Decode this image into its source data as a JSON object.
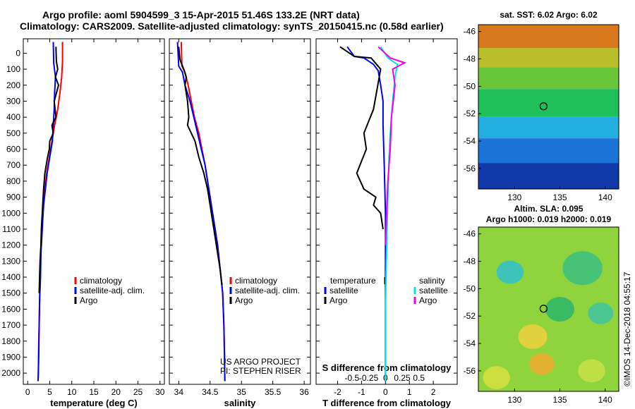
{
  "header": {
    "line1": "Argo profile: aoml 5904599_3 15-Apr-2015 51.46S 133.2E (NRT data)",
    "line2": "Climatology: CARS2009. Satellite-adjusted climatology: synTS_20150415.nc (0.58d earlier)"
  },
  "colors": {
    "climatology": "#ff0000",
    "satellite_adj": "#0000ff",
    "argo": "#000000",
    "salinity_sat": "#00e5e5",
    "salinity_argo": "#ee00ee"
  },
  "chart_data": [
    {
      "id": "temperature",
      "type": "line",
      "xlabel": "temperature (deg C)",
      "ylabel": "",
      "xlim": [
        -1,
        31
      ],
      "ylim": [
        2070,
        0
      ],
      "xticks": [
        0,
        5,
        10,
        15,
        20,
        25,
        30
      ],
      "yticks": [
        0,
        100,
        200,
        300,
        400,
        500,
        600,
        700,
        800,
        900,
        1000,
        1100,
        1200,
        1300,
        1400,
        1500,
        1600,
        1700,
        1800,
        1900,
        2000
      ],
      "legend": {
        "placement": "bottom-center",
        "entries": [
          "climatology",
          "satellite-adj. clim.",
          "Argo"
        ]
      },
      "series": [
        {
          "name": "climatology",
          "color": "#ff0000",
          "x": [
            7.9,
            7.9,
            7.7,
            7.3,
            6.8,
            6.1,
            5.5,
            4.9,
            4.3,
            3.9,
            3.5,
            3.3,
            3.1,
            2.95,
            2.8,
            2.7,
            2.6,
            2.5,
            2.45,
            2.4,
            2.35
          ],
          "y": [
            -70,
            50,
            150,
            250,
            350,
            450,
            550,
            650,
            750,
            850,
            950,
            1050,
            1150,
            1250,
            1400,
            1550,
            1700,
            1800,
            1900,
            2000,
            2050
          ]
        },
        {
          "name": "satellite-adj. clim.",
          "color": "#0000ff",
          "x": [
            5.8,
            5.9,
            6.3,
            6.1,
            6.0,
            5.8,
            5.6,
            5.0,
            4.4,
            4.0,
            3.6,
            3.4,
            3.2,
            3.0,
            2.9,
            2.7,
            2.6,
            2.55,
            2.5,
            2.4,
            2.35
          ],
          "y": [
            -70,
            60,
            150,
            250,
            350,
            450,
            550,
            650,
            750,
            850,
            950,
            1050,
            1150,
            1250,
            1400,
            1550,
            1700,
            1800,
            1900,
            2000,
            2050
          ]
        },
        {
          "name": "Argo",
          "color": "#000000",
          "x": [
            6.4,
            6.5,
            6.8,
            6.3,
            7.0,
            6.0,
            6.4,
            5.5,
            5.8,
            5.0,
            4.9,
            4.5,
            3.9,
            3.6,
            3.5,
            3.3,
            3.1,
            3.0,
            2.8,
            2.7,
            2.6
          ],
          "y": [
            -40,
            50,
            100,
            150,
            200,
            300,
            400,
            450,
            500,
            550,
            600,
            650,
            750,
            850,
            900,
            1000,
            1100,
            1200,
            1300,
            1400,
            1500
          ]
        }
      ]
    },
    {
      "id": "salinity",
      "type": "line",
      "xlabel": "salinity",
      "ylabel": "",
      "xlim": [
        33.85,
        36.1
      ],
      "ylim": [
        2070,
        0
      ],
      "xticks": [
        34,
        34.5,
        35,
        35.5,
        36
      ],
      "legend": {
        "placement": "bottom-center",
        "entries": [
          "climatology",
          "satellite-adj. clim.",
          "Argo"
        ]
      },
      "annotations": [
        "US ARGO PROJECT",
        "PI: STEPHEN RISER"
      ],
      "series": [
        {
          "name": "climatology",
          "color": "#ff0000",
          "x": [
            34.04,
            34.05,
            34.1,
            34.15,
            34.2,
            34.25,
            34.32,
            34.37,
            34.42,
            34.46,
            34.5,
            34.54,
            34.58,
            34.62,
            34.66,
            34.7,
            34.72,
            34.73,
            34.735
          ],
          "y": [
            -70,
            80,
            120,
            200,
            300,
            400,
            500,
            600,
            700,
            800,
            900,
            1000,
            1100,
            1200,
            1350,
            1500,
            1700,
            1900,
            2050
          ]
        },
        {
          "name": "satellite-adj. clim.",
          "color": "#0000ff",
          "x": [
            33.98,
            34.0,
            34.06,
            34.1,
            34.18,
            34.24,
            34.3,
            34.36,
            34.42,
            34.46,
            34.5,
            34.54,
            34.58,
            34.62,
            34.66,
            34.7,
            34.72,
            34.73,
            34.735
          ],
          "y": [
            -70,
            80,
            120,
            200,
            300,
            400,
            500,
            600,
            700,
            800,
            900,
            1000,
            1100,
            1200,
            1350,
            1500,
            1700,
            1900,
            2050
          ]
        },
        {
          "name": "Argo",
          "color": "#000000",
          "x": [
            34.0,
            34.02,
            34.08,
            34.12,
            34.1,
            34.14,
            34.16,
            34.14,
            34.2,
            34.26,
            34.32,
            34.4,
            34.46,
            34.5,
            34.54,
            34.58,
            34.62,
            34.66,
            34.69
          ],
          "y": [
            -40,
            40,
            100,
            150,
            200,
            300,
            400,
            450,
            500,
            550,
            650,
            750,
            850,
            950,
            1050,
            1150,
            1250,
            1350,
            1450
          ]
        }
      ]
    },
    {
      "id": "difference",
      "type": "line",
      "xlabel": "T difference from climatology",
      "xlabel2": "S difference from climatology",
      "xlim": [
        -2.9,
        3.0
      ],
      "ylim": [
        2070,
        0
      ],
      "xticks": [
        -2,
        -1,
        0,
        1,
        2
      ],
      "xticklabels": [
        "-2",
        "-1",
        "0",
        "1",
        "2"
      ],
      "xticks2": [
        -1.4,
        -0.7,
        0,
        0.7,
        1.4
      ],
      "xticklabels2": [
        "-0.5",
        "-0.25",
        "0",
        "0.25",
        "0.5"
      ],
      "legend": {
        "placement": "bottom",
        "left_title": "temperature",
        "left_entries": [
          "satellite",
          "Argo"
        ],
        "right_title": "salinity",
        "right_entries": [
          "satellite",
          "Argo"
        ]
      },
      "series": [
        {
          "name": "temperature satellite",
          "color": "#0000ff",
          "x": [
            -1.6,
            -1.3,
            -0.9,
            -0.5,
            -0.3,
            -0.2,
            -0.1,
            -0.1,
            -0.05,
            0,
            0,
            0,
            0
          ],
          "y": [
            -40,
            20,
            30,
            70,
            110,
            200,
            300,
            450,
            700,
            1000,
            1300,
            1700,
            2050
          ]
        },
        {
          "name": "temperature Argo",
          "color": "#000000",
          "x": [
            -1.9,
            -1.3,
            -0.6,
            -0.2,
            -0.5,
            -0.9,
            -0.8,
            -1.2,
            -0.9,
            -0.4,
            -0.5,
            -0.2,
            -0.1
          ],
          "y": [
            -40,
            20,
            30,
            100,
            350,
            500,
            600,
            750,
            850,
            900,
            950,
            1000,
            1100
          ]
        },
        {
          "name": "salinity satellite",
          "color": "#00e5e5",
          "x": [
            -0.2,
            0.1,
            0.5,
            0.4,
            0.3,
            0.2,
            0.15,
            0.1,
            0.05,
            0,
            0
          ],
          "y": [
            -40,
            30,
            70,
            150,
            300,
            500,
            650,
            900,
            1200,
            1600,
            2050
          ]
        },
        {
          "name": "salinity Argo",
          "color": "#ee00ee",
          "x": [
            -0.3,
            0.2,
            0.8,
            0.3,
            0.4,
            0.25,
            0.2,
            0.1,
            0.05,
            0
          ],
          "y": [
            -40,
            30,
            60,
            100,
            200,
            400,
            600,
            800,
            1000,
            1200
          ]
        }
      ]
    },
    {
      "id": "sst-map",
      "type": "heatmap",
      "title": "sat. SST: 6.02  Argo: 6.02",
      "xlim": [
        126,
        141.5
      ],
      "ylim": [
        -57.5,
        -45.5
      ],
      "xticks": [
        130,
        135,
        140
      ],
      "yticks": [
        -46,
        -48,
        -50,
        -52,
        -54,
        -56
      ],
      "marker": {
        "lon": 133.2,
        "lat": -51.46
      },
      "bands": [
        {
          "lat_max": -45.5,
          "lat_min": -47.2,
          "color": "#d8781c"
        },
        {
          "lat_max": -47.2,
          "lat_min": -48.6,
          "color": "#b9bf2a"
        },
        {
          "lat_max": -48.6,
          "lat_min": -50.2,
          "color": "#69c53a"
        },
        {
          "lat_max": -50.2,
          "lat_min": -52.2,
          "color": "#1fbf5a"
        },
        {
          "lat_max": -52.2,
          "lat_min": -53.8,
          "color": "#22aee0"
        },
        {
          "lat_max": -53.8,
          "lat_min": -55.6,
          "color": "#1c74d8"
        },
        {
          "lat_max": -55.6,
          "lat_min": -57.5,
          "color": "#1038a8"
        }
      ]
    },
    {
      "id": "sla-map",
      "type": "heatmap",
      "title": "Altim. SLA: 0.095",
      "title2": "Argo h1000: 0.019 h2000: 0.019",
      "xlim": [
        126,
        141.5
      ],
      "ylim": [
        -57.5,
        -45.5
      ],
      "xticks": [
        130,
        135,
        140
      ],
      "yticks": [
        -46,
        -48,
        -50,
        -52,
        -54,
        -56
      ],
      "marker": {
        "lon": 133.2,
        "lat": -51.46
      },
      "base_color": "#8fd43c",
      "blobs": [
        {
          "lon": 129.5,
          "lat": -48.8,
          "r": 1.5,
          "color": "#2fbfd0"
        },
        {
          "lon": 137.5,
          "lat": -48.5,
          "r": 2.2,
          "color": "#3bc080"
        },
        {
          "lon": 135.0,
          "lat": -51.5,
          "r": 1.6,
          "color": "#2bb56a"
        },
        {
          "lon": 139.5,
          "lat": -51.8,
          "r": 1.4,
          "color": "#3fc3a0"
        },
        {
          "lon": 132.0,
          "lat": -53.5,
          "r": 1.6,
          "color": "#f0d040"
        },
        {
          "lon": 133.0,
          "lat": -55.5,
          "r": 1.4,
          "color": "#f0a830"
        },
        {
          "lon": 128.0,
          "lat": -56.5,
          "r": 1.5,
          "color": "#d8e040"
        },
        {
          "lon": 138.5,
          "lat": -56.0,
          "r": 1.5,
          "color": "#c8e048"
        }
      ]
    }
  ],
  "credit": "©IMOS 14-Dec-2018 04:55:17"
}
